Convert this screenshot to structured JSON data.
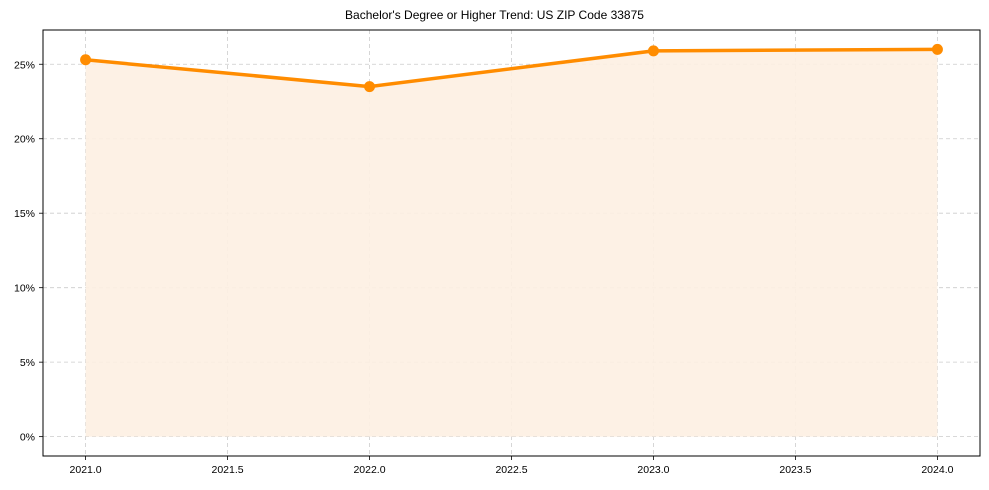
{
  "chart_data": {
    "type": "line",
    "title": "Bachelor's Degree or Higher Trend: US ZIP Code 33875",
    "xlabel": "",
    "ylabel": "",
    "x": [
      2021,
      2022,
      2023,
      2024
    ],
    "series": [
      {
        "name": "Bachelor's Degree or Higher",
        "values": [
          25.3,
          23.5,
          25.9,
          26.0
        ],
        "color": "#ff8c00",
        "fill": "#fdf0e2"
      }
    ],
    "x_ticks": [
      "2021.0",
      "2021.5",
      "2022.0",
      "2022.5",
      "2023.0",
      "2023.5",
      "2024.0"
    ],
    "y_ticks": [
      "0%",
      "5%",
      "10%",
      "15%",
      "20%",
      "25%"
    ],
    "xlim": [
      2020.85,
      2024.15
    ],
    "ylim": [
      -1.3,
      27.3
    ],
    "grid": true,
    "legend": "none"
  }
}
